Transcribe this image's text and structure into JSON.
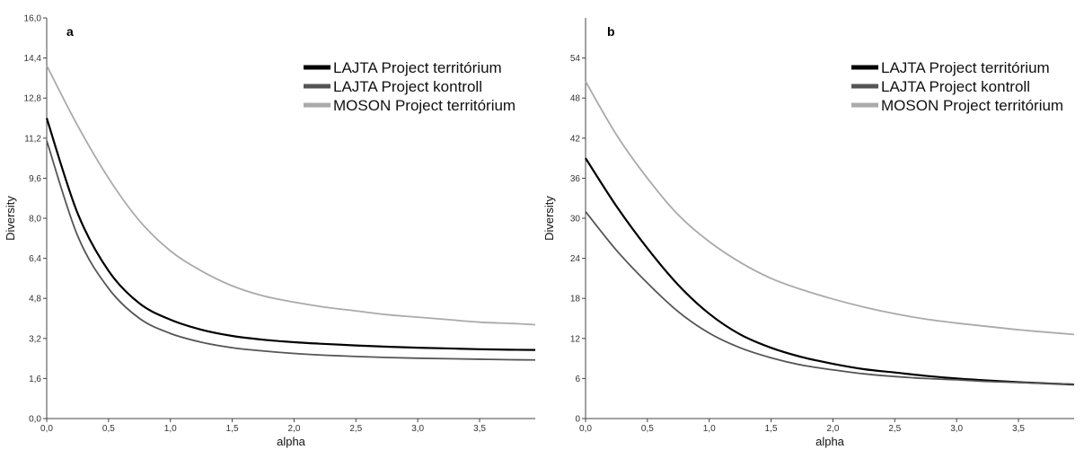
{
  "chart_data": [
    {
      "type": "line",
      "panel_label": "a",
      "xlabel": "alpha",
      "ylabel": "Diversity",
      "xlim": [
        0,
        3.95
      ],
      "ylim": [
        0,
        16.0
      ],
      "x_ticks": [
        0,
        0.5,
        1.0,
        1.5,
        2.0,
        2.5,
        3.0,
        3.5
      ],
      "x_tick_labels": [
        "0,0",
        "0,5",
        "1,0",
        "1,5",
        "2,0",
        "2,5",
        "3,0",
        "3,5"
      ],
      "y_ticks": [
        0,
        1.6,
        3.2,
        4.8,
        6.4,
        8.0,
        9.6,
        11.2,
        12.8,
        14.4,
        16.0
      ],
      "y_tick_labels": [
        "0,0",
        "1,6",
        "3,2",
        "4,8",
        "6,4",
        "8,0",
        "9,6",
        "11,2",
        "12,8",
        "14,4",
        "16,0"
      ],
      "legend_position": "top-right",
      "x": [
        0,
        0.25,
        0.5,
        0.75,
        1.0,
        1.25,
        1.5,
        1.75,
        2.0,
        2.25,
        2.5,
        2.75,
        3.0,
        3.25,
        3.5,
        3.75,
        3.95
      ],
      "series": [
        {
          "name": "LAJTA Project territórium",
          "color": "#000000",
          "values": [
            12.0,
            8.2,
            5.9,
            4.6,
            3.95,
            3.55,
            3.3,
            3.15,
            3.05,
            2.98,
            2.92,
            2.87,
            2.83,
            2.8,
            2.77,
            2.75,
            2.74
          ]
        },
        {
          "name": "LAJTA Project kontroll",
          "color": "#555555",
          "values": [
            11.1,
            7.3,
            5.2,
            4.0,
            3.4,
            3.05,
            2.83,
            2.7,
            2.6,
            2.53,
            2.48,
            2.44,
            2.41,
            2.39,
            2.37,
            2.35,
            2.34
          ]
        },
        {
          "name": "MOSON Project territórium",
          "color": "#aaaaaa",
          "values": [
            14.1,
            11.7,
            9.6,
            7.9,
            6.7,
            5.9,
            5.3,
            4.9,
            4.65,
            4.45,
            4.3,
            4.15,
            4.05,
            3.95,
            3.85,
            3.8,
            3.75
          ]
        }
      ]
    },
    {
      "type": "line",
      "panel_label": "b",
      "xlabel": "alpha",
      "ylabel": "Diversity",
      "xlim": [
        0,
        3.95
      ],
      "ylim": [
        0,
        60
      ],
      "x_ticks": [
        0,
        0.5,
        1.0,
        1.5,
        2.0,
        2.5,
        3.0,
        3.5
      ],
      "x_tick_labels": [
        "0,0",
        "0,5",
        "1,0",
        "1,5",
        "2,0",
        "2,5",
        "3,0",
        "3,5"
      ],
      "y_ticks": [
        0,
        6,
        12,
        18,
        24,
        30,
        36,
        42,
        48,
        54
      ],
      "y_tick_labels": [
        "0",
        "6",
        "12",
        "18",
        "24",
        "30",
        "36",
        "42",
        "48",
        "54"
      ],
      "legend_position": "top-right",
      "x": [
        0,
        0.25,
        0.5,
        0.75,
        1.0,
        1.25,
        1.5,
        1.75,
        2.0,
        2.25,
        2.5,
        2.75,
        3.0,
        3.25,
        3.5,
        3.75,
        3.95
      ],
      "series": [
        {
          "name": "LAJTA Project territórium",
          "color": "#000000",
          "values": [
            39.0,
            31.8,
            25.5,
            20.0,
            15.7,
            12.6,
            10.6,
            9.2,
            8.2,
            7.4,
            6.9,
            6.4,
            6.0,
            5.7,
            5.45,
            5.25,
            5.1
          ]
        },
        {
          "name": "LAJTA Project kontroll",
          "color": "#555555",
          "values": [
            31.0,
            25.2,
            20.3,
            16.0,
            12.8,
            10.6,
            9.1,
            8.0,
            7.3,
            6.7,
            6.3,
            6.0,
            5.8,
            5.55,
            5.4,
            5.25,
            5.15
          ]
        },
        {
          "name": "MOSON Project territórium",
          "color": "#aaaaaa",
          "values": [
            50.5,
            42.5,
            36.0,
            30.5,
            26.5,
            23.4,
            21.0,
            19.3,
            17.9,
            16.7,
            15.7,
            14.9,
            14.3,
            13.8,
            13.3,
            12.9,
            12.6
          ]
        }
      ]
    }
  ]
}
